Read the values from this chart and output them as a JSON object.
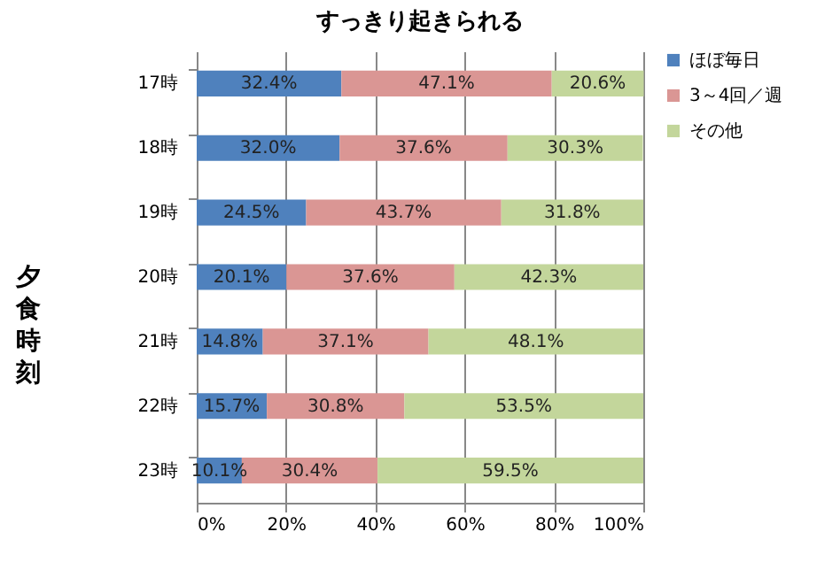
{
  "chart_data": {
    "type": "bar",
    "orientation": "horizontal",
    "stacked": true,
    "title": "すっきり起きられる",
    "ylabel": "夕食時刻",
    "categories": [
      "17時",
      "18時",
      "19時",
      "20時",
      "21時",
      "22時",
      "23時"
    ],
    "series": [
      {
        "name": "ほぼ毎日",
        "color": "#4f81bd",
        "values": [
          32.4,
          32.0,
          24.5,
          20.1,
          14.8,
          15.7,
          10.1
        ],
        "value_labels": [
          "32.4%",
          "32.0%",
          "24.5%",
          "20.1%",
          "14.8%",
          "15.7%",
          "10.1%"
        ]
      },
      {
        "name": "3～4回／週",
        "color": "#da9694",
        "values": [
          47.1,
          37.6,
          43.7,
          37.6,
          37.1,
          30.8,
          30.4
        ],
        "value_labels": [
          "47.1%",
          "37.6%",
          "43.7%",
          "37.6%",
          "37.1%",
          "30.8%",
          "30.4%"
        ]
      },
      {
        "name": "その他",
        "color": "#c3d69b",
        "values": [
          20.6,
          30.3,
          31.8,
          42.3,
          48.1,
          53.5,
          59.5
        ],
        "value_labels": [
          "20.6%",
          "30.3%",
          "31.8%",
          "42.3%",
          "48.1%",
          "53.5%",
          "59.5%"
        ]
      }
    ],
    "xlim": [
      0,
      100
    ],
    "xticks": [
      {
        "value": 0,
        "label": "0%"
      },
      {
        "value": 20,
        "label": "20%"
      },
      {
        "value": 40,
        "label": "40%"
      },
      {
        "value": 60,
        "label": "60%"
      },
      {
        "value": 80,
        "label": "80%"
      },
      {
        "value": 100,
        "label": "100%"
      }
    ],
    "grid": "x",
    "legend": "right"
  }
}
